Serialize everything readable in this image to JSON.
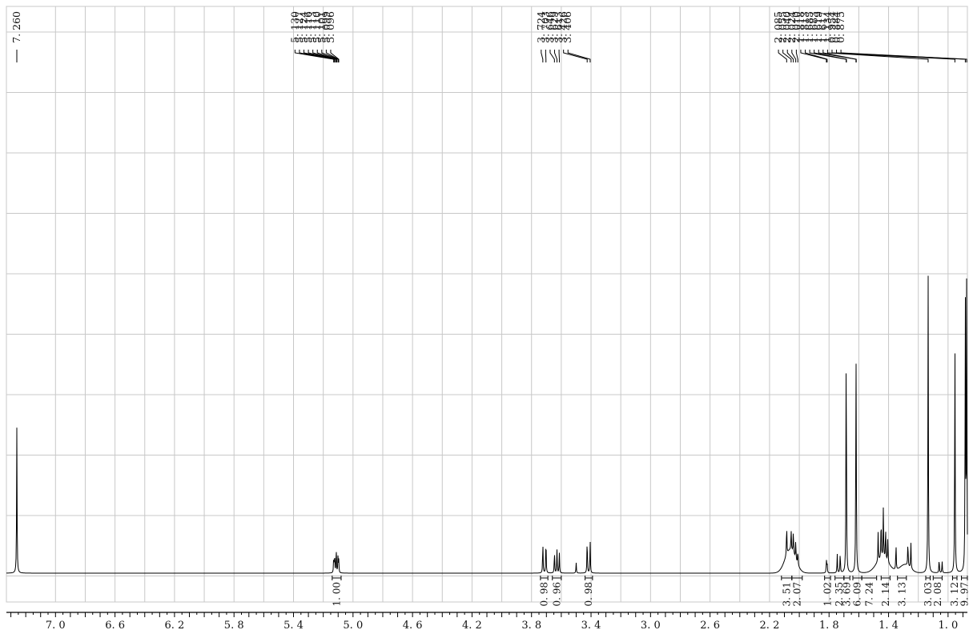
{
  "chart_data": {
    "type": "line",
    "title": "",
    "xlabel": "",
    "ylabel": "",
    "x_reversed": true,
    "xlim": [
      7.33,
      0.87
    ],
    "ylim": [
      0,
      1
    ],
    "grid": true,
    "x_ticks": [
      7.0,
      6.8,
      6.6,
      6.4,
      6.2,
      6.0,
      5.8,
      5.6,
      5.4,
      5.2,
      5.0,
      4.8,
      4.6,
      4.4,
      4.2,
      4.0,
      3.8,
      3.6,
      3.4,
      3.2,
      3.0,
      2.8,
      2.6,
      2.4,
      2.2,
      2.0,
      1.8,
      1.6,
      1.4,
      1.2,
      1.0
    ],
    "x_tick_labels": [
      {
        "value": 7.0,
        "label": "7. 0"
      },
      {
        "value": 6.6,
        "label": "6. 6"
      },
      {
        "value": 6.2,
        "label": "6. 2"
      },
      {
        "value": 5.8,
        "label": "5. 8"
      },
      {
        "value": 5.4,
        "label": "5. 4"
      },
      {
        "value": 5.0,
        "label": "5. 0"
      },
      {
        "value": 4.6,
        "label": "4. 6"
      },
      {
        "value": 4.2,
        "label": "4. 2"
      },
      {
        "value": 3.8,
        "label": "3. 8"
      },
      {
        "value": 3.4,
        "label": "3. 4"
      },
      {
        "value": 3.0,
        "label": "3. 0"
      },
      {
        "value": 2.6,
        "label": "2. 6"
      },
      {
        "value": 2.2,
        "label": "2. 2"
      },
      {
        "value": 1.8,
        "label": "1. 8"
      },
      {
        "value": 1.4,
        "label": "1. 4"
      },
      {
        "value": 1.0,
        "label": "1. 0"
      }
    ],
    "peak_groups": [
      {
        "labels": [
          "7. 260"
        ],
        "anchor": 7.26
      },
      {
        "labels": [
          "5. 130",
          "5. 127",
          "5. 124",
          "5. 116",
          "5. 113",
          "5. 110",
          "5. 101",
          "5. 099",
          "5. 096"
        ],
        "anchor": 5.113
      },
      {
        "labels": [
          "3. 724",
          "3. 703",
          "3. 646",
          "3. 629",
          "3. 613",
          "3. 426",
          "3. 406"
        ],
        "anchor": 3.66
      },
      {
        "labels": [
          "2. 085",
          "2. 055",
          "2. 040",
          "2. 024",
          "2. 010",
          "1. 818",
          "1. 813",
          "1. 685",
          "1. 683",
          "1. 619",
          "1. 617",
          "1. 134",
          "0. 954",
          "0. 884",
          "0. 875"
        ],
        "anchor": 1.55
      }
    ],
    "peak_label_positions": [
      7.26,
      5.39,
      5.36,
      5.33,
      5.3,
      5.27,
      5.24,
      5.21,
      5.18,
      5.15,
      3.735,
      3.705,
      3.675,
      3.645,
      3.615,
      3.585,
      3.555,
      2.14,
      2.11,
      2.08,
      2.05,
      2.02,
      1.99,
      1.96,
      1.93,
      1.9,
      1.87,
      1.84,
      1.81,
      1.78,
      1.75,
      1.72
    ],
    "integrals": [
      {
        "value": "1. 00",
        "from": 5.14,
        "to": 5.08
      },
      {
        "value": "0. 98",
        "from": 3.74,
        "to": 3.69
      },
      {
        "value": "0. 96",
        "from": 3.66,
        "to": 3.6
      },
      {
        "value": "0. 98",
        "from": 3.44,
        "to": 3.39
      },
      {
        "value": "3. 51",
        "from": 2.12,
        "to": 2.05
      },
      {
        "value": "2. 07",
        "from": 2.05,
        "to": 1.98
      },
      {
        "value": "1. 02",
        "from": 1.83,
        "to": 1.79
      },
      {
        "value": "2. 35",
        "from": 1.76,
        "to": 1.7
      },
      {
        "value": "3. 69",
        "from": 1.7,
        "to": 1.66
      },
      {
        "value": "6. 09",
        "from": 1.64,
        "to": 1.58
      },
      {
        "value": "7. 24",
        "from": 1.58,
        "to": 1.48
      },
      {
        "value": "2. 14",
        "from": 1.45,
        "to": 1.39
      },
      {
        "value": "3. 13",
        "from": 1.34,
        "to": 1.28
      },
      {
        "value": "3. 03",
        "from": 1.15,
        "to": 1.12
      },
      {
        "value": "2. 08",
        "from": 1.1,
        "to": 1.04
      },
      {
        "value": "3. 12",
        "from": 0.97,
        "to": 0.94
      },
      {
        "value": "9. 97",
        "from": 0.91,
        "to": 0.87
      }
    ],
    "peaks": [
      {
        "x": 7.26,
        "h": 0.345
      },
      {
        "x": 5.13,
        "h": 0.035
      },
      {
        "x": 5.124,
        "h": 0.045
      },
      {
        "x": 5.113,
        "h": 0.06
      },
      {
        "x": 5.101,
        "h": 0.038
      },
      {
        "x": 5.096,
        "h": 0.03
      },
      {
        "x": 3.724,
        "h": 0.075
      },
      {
        "x": 3.703,
        "h": 0.085
      },
      {
        "x": 3.646,
        "h": 0.052
      },
      {
        "x": 3.629,
        "h": 0.055
      },
      {
        "x": 3.613,
        "h": 0.048
      },
      {
        "x": 3.5,
        "h": 0.025
      },
      {
        "x": 3.426,
        "h": 0.085
      },
      {
        "x": 3.406,
        "h": 0.078
      },
      {
        "x": 2.085,
        "h": 0.075
      },
      {
        "x": 2.055,
        "h": 0.05
      },
      {
        "x": 2.04,
        "h": 0.055
      },
      {
        "x": 2.024,
        "h": 0.045
      },
      {
        "x": 2.01,
        "h": 0.035
      },
      {
        "x": 1.818,
        "h": 0.03
      },
      {
        "x": 1.813,
        "h": 0.025
      },
      {
        "x": 1.745,
        "h": 0.045
      },
      {
        "x": 1.725,
        "h": 0.05
      },
      {
        "x": 1.685,
        "h": 0.485
      },
      {
        "x": 1.683,
        "h": 0.1
      },
      {
        "x": 1.619,
        "h": 0.49
      },
      {
        "x": 1.617,
        "h": 0.11
      },
      {
        "x": 1.47,
        "h": 0.07
      },
      {
        "x": 1.45,
        "h": 0.1
      },
      {
        "x": 1.435,
        "h": 0.12
      },
      {
        "x": 1.42,
        "h": 0.08
      },
      {
        "x": 1.405,
        "h": 0.06
      },
      {
        "x": 1.35,
        "h": 0.065
      },
      {
        "x": 1.27,
        "h": 0.06
      },
      {
        "x": 1.25,
        "h": 0.065
      },
      {
        "x": 1.134,
        "h": 0.715
      },
      {
        "x": 1.06,
        "h": 0.035
      },
      {
        "x": 1.04,
        "h": 0.028
      },
      {
        "x": 0.954,
        "h": 0.57
      },
      {
        "x": 0.884,
        "h": 0.68
      },
      {
        "x": 0.875,
        "h": 0.7
      }
    ],
    "broad_humps": [
      {
        "x": 2.06,
        "h": 0.055,
        "w": 0.05
      },
      {
        "x": 1.44,
        "h": 0.035,
        "w": 0.06
      },
      {
        "x": 1.29,
        "h": 0.02,
        "w": 0.05
      }
    ]
  }
}
